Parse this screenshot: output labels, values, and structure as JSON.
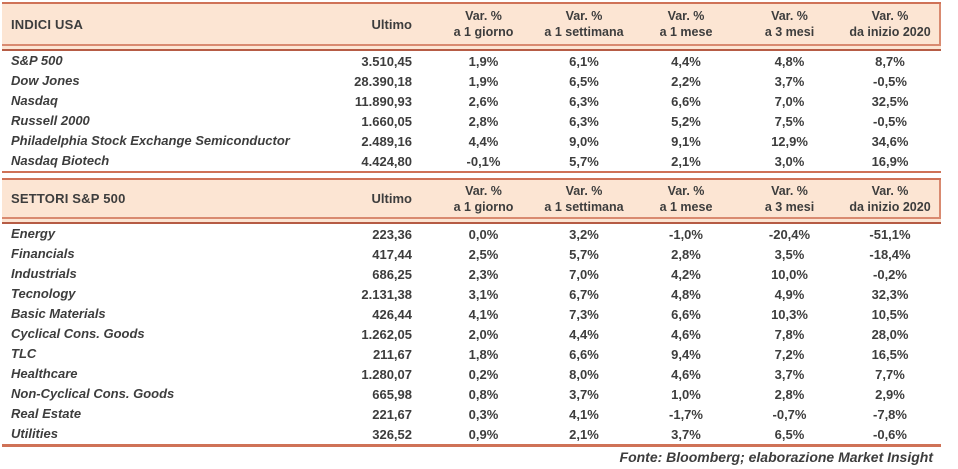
{
  "columns": {
    "ultimo": "Ultimo",
    "variations": [
      {
        "line1": "Var. %",
        "line2": "a 1 giorno"
      },
      {
        "line1": "Var. %",
        "line2": "a 1 settimana"
      },
      {
        "line1": "Var. %",
        "line2": "a 1 mese"
      },
      {
        "line1": "Var. %",
        "line2": "a 3 mesi"
      },
      {
        "line1": "Var. %",
        "line2": "da inizio 2020"
      }
    ]
  },
  "tables": [
    {
      "title": "INDICI USA",
      "rows": [
        [
          "S&P 500",
          "3.510,45",
          "1,9%",
          "6,1%",
          "4,4%",
          "4,8%",
          "8,7%"
        ],
        [
          "Dow Jones",
          "28.390,18",
          "1,9%",
          "6,5%",
          "2,2%",
          "3,7%",
          "-0,5%"
        ],
        [
          "Nasdaq",
          "11.890,93",
          "2,6%",
          "6,3%",
          "6,6%",
          "7,0%",
          "32,5%"
        ],
        [
          "Russell 2000",
          "1.660,05",
          "2,8%",
          "6,3%",
          "5,2%",
          "7,5%",
          "-0,5%"
        ],
        [
          "Philadelphia Stock Exchange Semiconductor",
          "2.489,16",
          "4,4%",
          "9,0%",
          "9,1%",
          "12,9%",
          "34,6%"
        ],
        [
          "Nasdaq Biotech",
          "4.424,80",
          "-0,1%",
          "5,7%",
          "2,1%",
          "3,0%",
          "16,9%"
        ]
      ]
    },
    {
      "title": "SETTORI S&P 500",
      "rows": [
        [
          "Energy",
          "223,36",
          "0,0%",
          "3,2%",
          "-1,0%",
          "-20,4%",
          "-51,1%"
        ],
        [
          "Financials",
          "417,44",
          "2,5%",
          "5,7%",
          "2,8%",
          "3,5%",
          "-18,4%"
        ],
        [
          "Industrials",
          "686,25",
          "2,3%",
          "7,0%",
          "4,2%",
          "10,0%",
          "-0,2%"
        ],
        [
          "Tecnology",
          "2.131,38",
          "3,1%",
          "6,7%",
          "4,8%",
          "4,9%",
          "32,3%"
        ],
        [
          "Basic Materials",
          "426,44",
          "4,1%",
          "7,3%",
          "6,6%",
          "10,3%",
          "10,5%"
        ],
        [
          "Cyclical Cons. Goods",
          "1.262,05",
          "2,0%",
          "4,4%",
          "4,6%",
          "7,8%",
          "28,0%"
        ],
        [
          "TLC",
          "211,67",
          "1,8%",
          "6,6%",
          "9,4%",
          "7,2%",
          "16,5%"
        ],
        [
          "Healthcare",
          "1.280,07",
          "0,2%",
          "8,0%",
          "4,6%",
          "3,7%",
          "7,7%"
        ],
        [
          "Non-Cyclical Cons. Goods",
          "665,98",
          "0,8%",
          "3,7%",
          "1,0%",
          "2,8%",
          "2,9%"
        ],
        [
          "Real Estate",
          "221,67",
          "0,3%",
          "4,1%",
          "-1,7%",
          "-0,7%",
          "-7,8%"
        ],
        [
          "Utilities",
          "326,52",
          "0,9%",
          "2,1%",
          "3,7%",
          "6,5%",
          "-0,6%"
        ]
      ]
    }
  ],
  "source_note": "Fonte: Bloomberg; elaborazione Market Insight",
  "colors": {
    "header_bg": "#fce5d3",
    "rule": "#cf7257",
    "rule_light": "#d98a70",
    "rule_dark": "#b65c45",
    "text": "#3d3d3d"
  }
}
